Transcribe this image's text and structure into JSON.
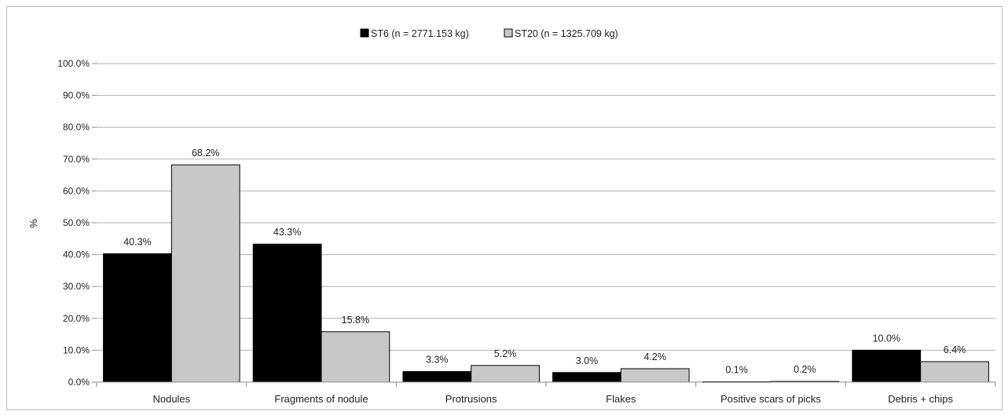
{
  "chart_data": {
    "type": "bar",
    "title": "",
    "xlabel": "",
    "ylabel": "%",
    "ylim": [
      0,
      100
    ],
    "yticks": [
      "0.0%",
      "10.0%",
      "20.0%",
      "30.0%",
      "40.0%",
      "50.0%",
      "60.0%",
      "70.0%",
      "80.0%",
      "90.0%",
      "100.0%"
    ],
    "grid": true,
    "legend_position": "top-center",
    "categories": [
      "Nodules",
      "Fragments of nodule",
      "Protrusions",
      "Flakes",
      "Positive scars of picks",
      "Debris + chips"
    ],
    "series": [
      {
        "name": "ST6 (n = 2771.153 kg)",
        "color": "#000000",
        "values": [
          40.3,
          43.3,
          3.3,
          3.0,
          0.1,
          10.0
        ],
        "labels": [
          "40.3%",
          "43.3%",
          "3.3%",
          "3.0%",
          "0.1%",
          "10.0%"
        ]
      },
      {
        "name": "ST20 (n = 1325.709 kg)",
        "color": "#c8c8c8",
        "values": [
          68.2,
          15.8,
          5.2,
          4.2,
          0.2,
          6.4
        ],
        "labels": [
          "68.2%",
          "15.8%",
          "5.2%",
          "4.2%",
          "0.2%",
          "6.4%"
        ]
      }
    ]
  }
}
